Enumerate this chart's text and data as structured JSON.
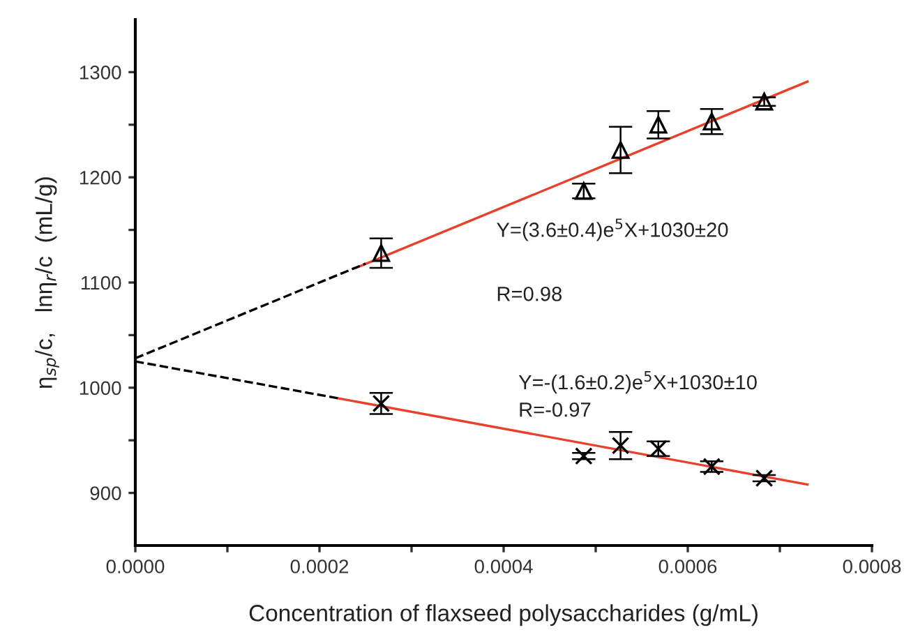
{
  "chart_data": {
    "type": "scatter",
    "xlabel": "Concentration of flaxseed polysaccharides (g/mL)",
    "ylabel": "η$_{sp}$/c,   lnη$_{r}$/c  (mL/g)",
    "xlim": [
      0,
      0.0008
    ],
    "ylim": [
      850,
      1350
    ],
    "xticks": [
      {
        "value": 0,
        "label": "0.0000"
      },
      {
        "value": 0.0001,
        "label": null
      },
      {
        "value": 0.0002,
        "label": "0.0002"
      },
      {
        "value": 0.0003,
        "label": null
      },
      {
        "value": 0.0004,
        "label": "0.0004"
      },
      {
        "value": 0.0005,
        "label": null
      },
      {
        "value": 0.0006,
        "label": "0.0006"
      },
      {
        "value": 0.0007,
        "label": null
      },
      {
        "value": 0.0008,
        "label": "0.0008"
      }
    ],
    "yticks": [
      {
        "value": 900,
        "label": "900"
      },
      {
        "value": 950,
        "label": null
      },
      {
        "value": 1000,
        "label": "1000"
      },
      {
        "value": 1050,
        "label": null
      },
      {
        "value": 1100,
        "label": "1100"
      },
      {
        "value": 1150,
        "label": null
      },
      {
        "value": 1200,
        "label": "1200"
      },
      {
        "value": 1250,
        "label": null
      },
      {
        "value": 1300,
        "label": "1300"
      }
    ],
    "grid": false,
    "legend": false,
    "series": [
      {
        "marker": "triangle",
        "color": "#000000",
        "x": [
          0.000267,
          0.000487,
          0.000527,
          0.000568,
          0.000626,
          0.000683
        ],
        "values": [
          1128,
          1187,
          1226,
          1250,
          1253,
          1272
        ],
        "errors": [
          14,
          7,
          22,
          13,
          12,
          4
        ]
      },
      {
        "marker": "cross",
        "color": "#000000",
        "x": [
          0.000267,
          0.000487,
          0.000527,
          0.000568,
          0.000626,
          0.000683
        ],
        "values": [
          985,
          935,
          945,
          942,
          925,
          914
        ],
        "errors": [
          10,
          3,
          13,
          7,
          5,
          3
        ]
      },
      {
        "type": "line",
        "line_style": "solid",
        "color": "#e8402a",
        "x": [
          0.00024,
          0.00073
        ],
        "values": [
          1114,
          1291
        ]
      },
      {
        "type": "line",
        "line_style": "dashed",
        "color": "#000000",
        "x": [
          0,
          0.00025
        ],
        "values": [
          1028,
          1118
        ]
      },
      {
        "type": "line",
        "line_style": "solid",
        "color": "#e8402a",
        "x": [
          0.00022,
          0.00073
        ],
        "values": [
          990,
          908
        ]
      },
      {
        "type": "line",
        "line_style": "dashed",
        "color": "#000000",
        "x": [
          0,
          0.00022
        ],
        "values": [
          1025,
          990
        ]
      }
    ],
    "annotations": [
      "Y=(3.6±0.4)e$^{5}$X+1030±20",
      "R=0.98",
      "Y=-(1.6±0.2)e$^{5}$X+1030±10",
      "R=-0.97"
    ]
  }
}
